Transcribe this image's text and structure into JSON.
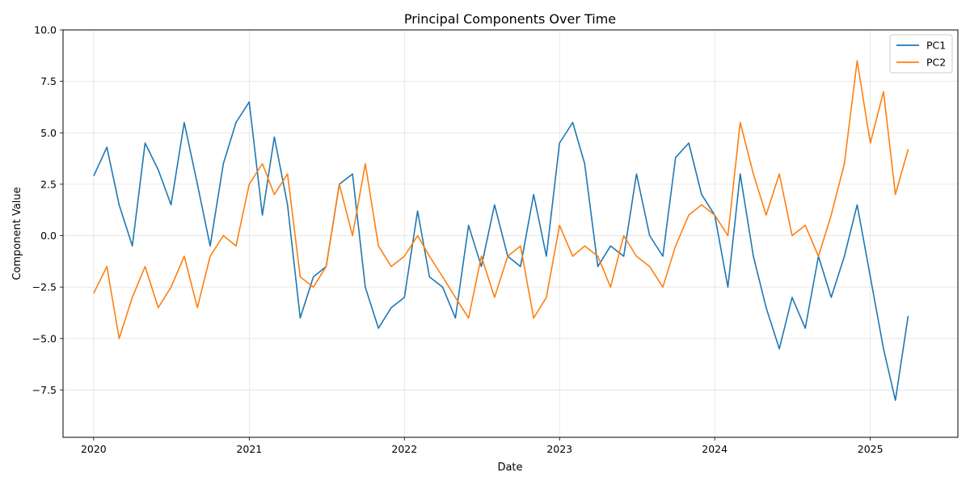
{
  "chart_data": {
    "type": "line",
    "title": "Principal Components Over Time",
    "xlabel": "Date",
    "ylabel": "Component Value",
    "xlim": [
      "2019-10-21",
      "2025-07-26"
    ],
    "ylim": [
      -9.8,
      10.0
    ],
    "x_ticks": [
      "2020-01-01",
      "2021-01-01",
      "2022-01-01",
      "2023-01-01",
      "2024-01-01",
      "2025-01-01"
    ],
    "x_tick_labels": [
      "2020",
      "2021",
      "2022",
      "2023",
      "2024",
      "2025"
    ],
    "y_ticks": [
      -7.5,
      -5.0,
      -2.5,
      0.0,
      2.5,
      5.0,
      7.5,
      10.0
    ],
    "y_tick_labels": [
      "−7.5",
      "−5.0",
      "−2.5",
      "0.0",
      "2.5",
      "5.0",
      "7.5",
      "10.0"
    ],
    "grid": true,
    "legend": "top-right",
    "series": [
      {
        "name": "PC1",
        "color": "#1f77b4",
        "x": [
          "2020-01-01",
          "2020-02-01",
          "2020-03-01",
          "2020-04-01",
          "2020-05-01",
          "2020-06-01",
          "2020-07-01",
          "2020-08-01",
          "2020-09-01",
          "2020-10-01",
          "2020-11-01",
          "2020-12-01",
          "2021-01-01",
          "2021-02-01",
          "2021-03-01",
          "2021-04-01",
          "2021-05-01",
          "2021-06-01",
          "2021-07-01",
          "2021-08-01",
          "2021-09-01",
          "2021-10-01",
          "2021-11-01",
          "2021-12-01",
          "2022-01-01",
          "2022-02-01",
          "2022-03-01",
          "2022-04-01",
          "2022-05-01",
          "2022-06-01",
          "2022-07-01",
          "2022-08-01",
          "2022-09-01",
          "2022-10-01",
          "2022-11-01",
          "2022-12-01",
          "2023-01-01",
          "2023-02-01",
          "2023-03-01",
          "2023-04-01",
          "2023-05-01",
          "2023-06-01",
          "2023-07-01",
          "2023-08-01",
          "2023-09-01",
          "2023-10-01",
          "2023-11-01",
          "2023-12-01",
          "2024-01-01",
          "2024-02-01",
          "2024-03-01",
          "2024-04-01",
          "2024-05-01",
          "2024-06-01",
          "2024-07-01",
          "2024-08-01",
          "2024-09-01",
          "2024-10-01",
          "2024-11-01",
          "2024-12-01",
          "2025-01-01",
          "2025-02-01",
          "2025-03-01",
          "2025-03-31"
        ],
        "values": [
          2.9,
          4.3,
          1.5,
          -0.5,
          4.5,
          3.2,
          1.5,
          5.5,
          2.5,
          -0.5,
          3.5,
          5.5,
          6.5,
          1.0,
          4.8,
          1.5,
          -4.0,
          -2.0,
          -1.5,
          2.5,
          3.0,
          -2.5,
          -4.5,
          -3.5,
          -3.0,
          1.2,
          -2.0,
          -2.5,
          -4.0,
          0.5,
          -1.5,
          1.5,
          -1.0,
          -1.5,
          2.0,
          -1.0,
          4.5,
          5.5,
          3.5,
          -1.5,
          -0.5,
          -1.0,
          3.0,
          0.0,
          -1.0,
          3.8,
          4.5,
          2.0,
          1.0,
          -2.5,
          3.0,
          -1.0,
          -3.5,
          -5.5,
          -3.0,
          -4.5,
          -1.0,
          -3.0,
          -1.0,
          1.5,
          -2.0,
          -5.5,
          -8.0,
          -3.9
        ]
      },
      {
        "name": "PC2",
        "color": "#ff7f0e",
        "x": [
          "2020-01-01",
          "2020-02-01",
          "2020-03-01",
          "2020-04-01",
          "2020-05-01",
          "2020-06-01",
          "2020-07-01",
          "2020-08-01",
          "2020-09-01",
          "2020-10-01",
          "2020-11-01",
          "2020-12-01",
          "2021-01-01",
          "2021-02-01",
          "2021-03-01",
          "2021-04-01",
          "2021-05-01",
          "2021-06-01",
          "2021-07-01",
          "2021-08-01",
          "2021-09-01",
          "2021-10-01",
          "2021-11-01",
          "2021-12-01",
          "2022-01-01",
          "2022-02-01",
          "2022-03-01",
          "2022-04-01",
          "2022-05-01",
          "2022-06-01",
          "2022-07-01",
          "2022-08-01",
          "2022-09-01",
          "2022-10-01",
          "2022-11-01",
          "2022-12-01",
          "2023-01-01",
          "2023-02-01",
          "2023-03-01",
          "2023-04-01",
          "2023-05-01",
          "2023-06-01",
          "2023-07-01",
          "2023-08-01",
          "2023-09-01",
          "2023-10-01",
          "2023-11-01",
          "2023-12-01",
          "2024-01-01",
          "2024-02-01",
          "2024-03-01",
          "2024-04-01",
          "2024-05-01",
          "2024-06-01",
          "2024-07-01",
          "2024-08-01",
          "2024-09-01",
          "2024-10-01",
          "2024-11-01",
          "2024-12-01",
          "2025-01-01",
          "2025-02-01",
          "2025-03-01",
          "2025-03-31"
        ],
        "values": [
          -2.8,
          -1.5,
          -5.0,
          -3.0,
          -1.5,
          -3.5,
          -2.5,
          -1.0,
          -3.5,
          -1.0,
          0.0,
          -0.5,
          2.5,
          3.5,
          2.0,
          3.0,
          -2.0,
          -2.5,
          -1.5,
          2.5,
          0.0,
          3.5,
          -0.5,
          -1.5,
          -1.0,
          0.0,
          -1.0,
          -2.0,
          -3.0,
          -4.0,
          -1.0,
          -3.0,
          -1.0,
          -0.5,
          -4.0,
          -3.0,
          0.5,
          -1.0,
          -0.5,
          -1.0,
          -2.5,
          0.0,
          -1.0,
          -1.5,
          -2.5,
          -0.5,
          1.0,
          1.5,
          1.0,
          0.0,
          5.5,
          3.0,
          1.0,
          3.0,
          0.0,
          0.5,
          -1.0,
          1.0,
          3.5,
          8.5,
          4.5,
          7.0,
          2.0,
          4.2
        ]
      }
    ]
  }
}
